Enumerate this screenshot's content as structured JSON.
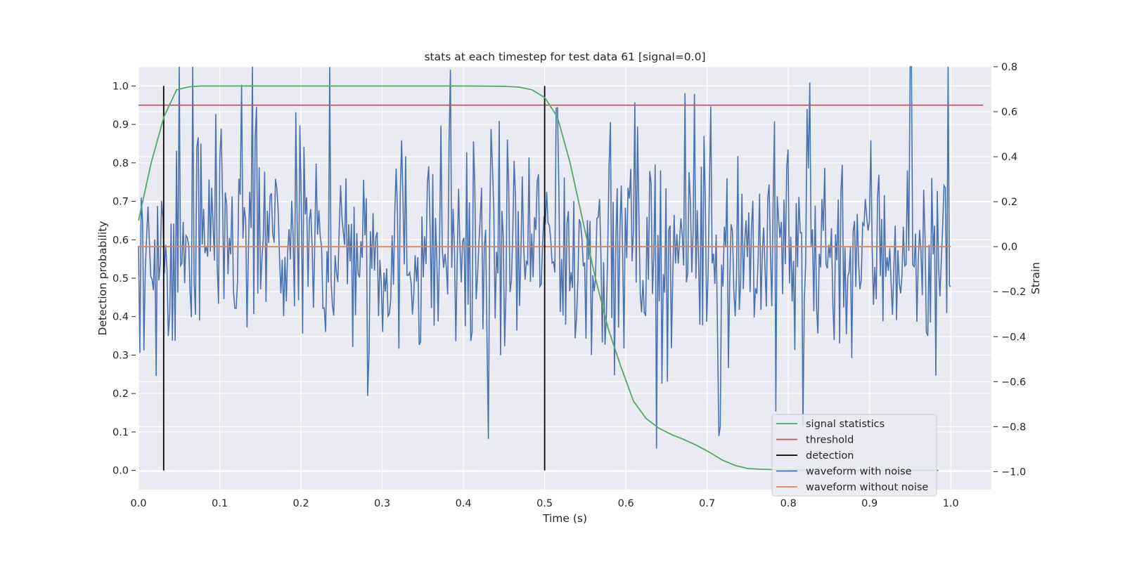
{
  "chart_data": {
    "type": "line",
    "title": "stats at each timestep for test data 61 [signal=0.0]",
    "xlabel": "Time (s)",
    "ylabel": "Detection probability",
    "ylabel_right": "Strain",
    "xlim": [
      0.0,
      1.05
    ],
    "ylim": [
      -0.05,
      1.05
    ],
    "ylim_right": [
      -1.08,
      0.8
    ],
    "x_ticks": [
      "0.0",
      "0.1",
      "0.2",
      "0.3",
      "0.4",
      "0.5",
      "0.6",
      "0.7",
      "0.8",
      "0.9",
      "1.0"
    ],
    "y_ticks": [
      "0.0",
      "0.1",
      "0.2",
      "0.3",
      "0.4",
      "0.5",
      "0.6",
      "0.7",
      "0.8",
      "0.9",
      "1.0"
    ],
    "y_right_ticks": [
      "−1.0",
      "−0.8",
      "−0.6",
      "−0.4",
      "−0.2",
      "0.0",
      "0.2",
      "0.4",
      "0.6",
      "0.8"
    ],
    "grid": true,
    "legend_position": "lower right",
    "legend": [
      "signal statistics",
      "threshold",
      "detection",
      "waveform with noise",
      "waveform without noise"
    ],
    "colors": {
      "signal_statistics": "#55a868",
      "threshold": "#c44e52",
      "detection": "#000000",
      "waveform_noise": "#4c72b0",
      "waveform_clean": "#dd8452",
      "plot_bg": "#eaeaf2",
      "grid": "#ffffff"
    },
    "series": [
      {
        "name": "signal statistics",
        "axis": "left",
        "x": [
          0.0,
          0.0156,
          0.0313,
          0.0469,
          0.0625,
          0.0781,
          0.0938,
          0.1094,
          0.125,
          0.2,
          0.3,
          0.4,
          0.45,
          0.4688,
          0.4844,
          0.5,
          0.5156,
          0.5313,
          0.5469,
          0.5625,
          0.5781,
          0.5938,
          0.6094,
          0.625,
          0.6406,
          0.6563,
          0.6719,
          0.6875,
          0.7031,
          0.7188,
          0.7344,
          0.75,
          0.7656,
          0.7813,
          0.8,
          0.85,
          0.9,
          0.95,
          0.985
        ],
        "y": [
          0.65,
          0.8,
          0.92,
          0.99,
          0.998,
          1.0,
          1.0,
          1.0,
          1.0,
          1.0,
          1.0,
          1.0,
          0.999,
          0.997,
          0.99,
          0.97,
          0.92,
          0.8,
          0.65,
          0.5,
          0.37,
          0.27,
          0.18,
          0.135,
          0.11,
          0.093,
          0.08,
          0.065,
          0.047,
          0.027,
          0.013,
          0.005,
          0.003,
          0.002,
          0.001,
          0.0,
          0.0,
          0.0,
          0.0
        ]
      },
      {
        "name": "threshold",
        "axis": "left",
        "x": [
          0.0,
          1.04
        ],
        "y": [
          0.95,
          0.95
        ]
      },
      {
        "name": "detection",
        "axis": "left",
        "x": [
          0.031,
          0.5
        ],
        "y_range": [
          0.0,
          1.0
        ]
      },
      {
        "name": "waveform with noise",
        "axis": "right",
        "x_range": [
          0.0,
          1.0
        ],
        "n_points": 600,
        "y_min": -1.0,
        "y_max": 0.8
      },
      {
        "name": "waveform without noise",
        "axis": "right",
        "x": [
          0.0,
          1.0
        ],
        "y": [
          0.0,
          0.0
        ]
      }
    ]
  }
}
